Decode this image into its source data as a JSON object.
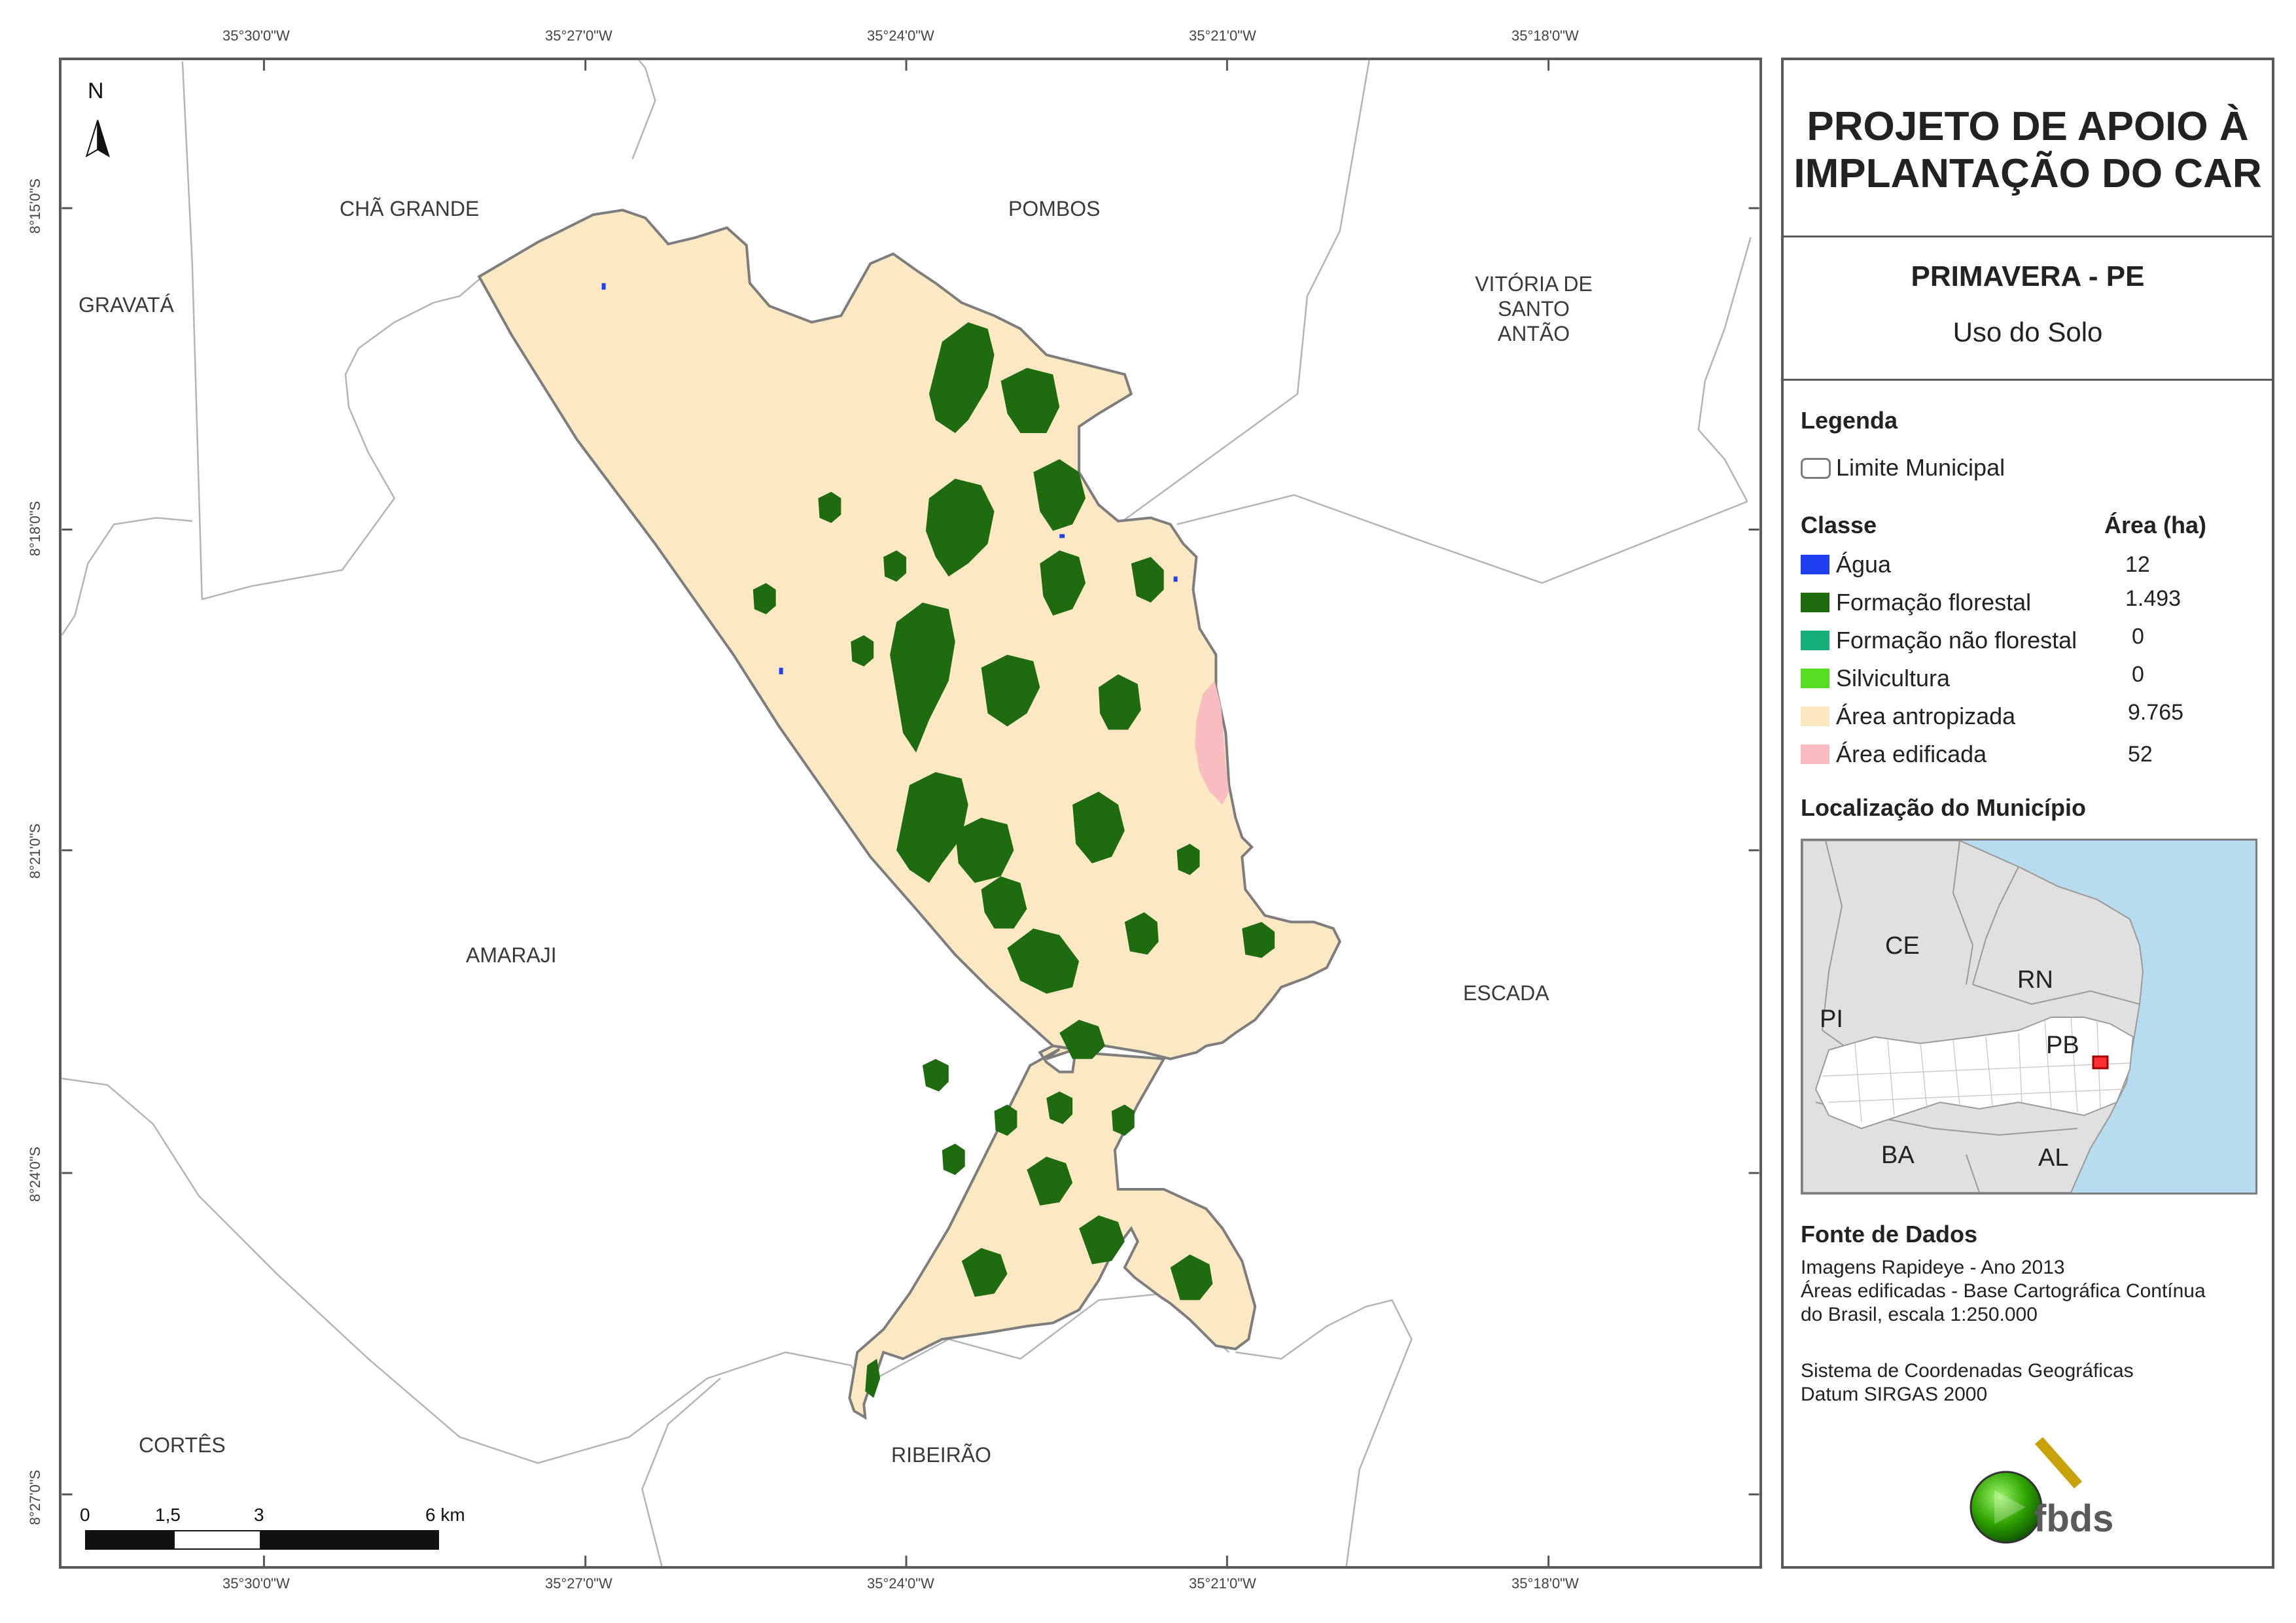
{
  "coordinates": {
    "top_lon": [
      "35°30'0\"W",
      "35°27'0\"W",
      "35°24'0\"W",
      "35°21'0\"W",
      "35°18'0\"W"
    ],
    "bottom_lon": [
      "35°30'0\"W",
      "35°27'0\"W",
      "35°24'0\"W",
      "35°21'0\"W",
      "35°18'0\"W"
    ],
    "left_lat": [
      "8°15'0\"S",
      "8°18'0\"S",
      "8°21'0\"S",
      "8°24'0\"S",
      "8°27'0\"S"
    ]
  },
  "map": {
    "north_label": "N",
    "municipalities": {
      "cha_grande": "CHÃ GRANDE",
      "pombos": "POMBOS",
      "gravata": "GRAVATÁ",
      "vitoria_1": "VITÓRIA DE",
      "vitoria_2": "SANTO",
      "vitoria_3": "ANTÃO",
      "amaraji": "AMARAJI",
      "escada": "ESCADA",
      "cortes": "CORTÊS",
      "ribeirao": "RIBEIRÃO"
    },
    "scale": {
      "l0": "0",
      "l1": "1,5",
      "l2": "3",
      "l3": "6 km"
    }
  },
  "panel": {
    "title_line1": "PROJETO DE APOIO À",
    "title_line2": "IMPLANTAÇÃO DO CAR",
    "municipality": "PRIMAVERA - PE",
    "subtitle": "Uso do Solo",
    "legend_title": "Legenda",
    "limit_label": "Limite Municipal",
    "class_header": "Classe",
    "area_header": "Área (ha)",
    "classes": [
      {
        "label": "Água",
        "value": "12",
        "color": "#1f3ff0"
      },
      {
        "label": "Formação florestal",
        "value": "1.493",
        "color": "#1e6b10"
      },
      {
        "label": "Formação não florestal",
        "value": "0",
        "color": "#18b07a"
      },
      {
        "label": "Silvicultura",
        "value": "0",
        "color": "#55dd22"
      },
      {
        "label": "Área antropizada",
        "value": "9.765",
        "color": "#fbe7c0"
      },
      {
        "label": "Área edificada",
        "value": "52",
        "color": "#f9bcc0"
      }
    ],
    "location_title": "Localização do Município",
    "inset_states": {
      "ce": "CE",
      "rn": "RN",
      "pi": "PI",
      "pb": "PB",
      "ba": "BA",
      "al": "AL"
    },
    "source_title": "Fonte de Dados",
    "source_lines": [
      "Imagens Rapideye - Ano 2013",
      "Áreas edificadas - Base Cartográfica Contínua",
      "do Brasil, escala 1:250.000"
    ],
    "crs_lines": [
      "Sistema de Coordenadas Geográficas",
      "Datum SIRGAS 2000"
    ],
    "logo_text": "fbds"
  }
}
